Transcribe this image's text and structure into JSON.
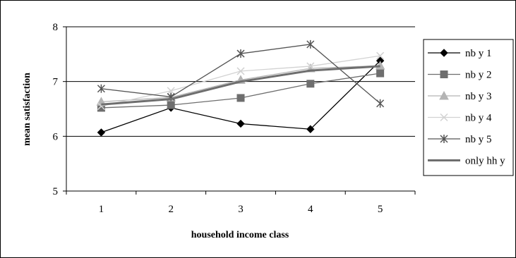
{
  "chart_data": {
    "type": "line",
    "x": [
      "1",
      "2",
      "3",
      "4",
      "5"
    ],
    "xlabel": "household income class",
    "ylabel": "mean satisfaction",
    "ylim": [
      5,
      8
    ],
    "yticks": [
      "5",
      "6",
      "7",
      "8"
    ],
    "grid": "horizontal major lines",
    "legend_position": "right",
    "series": [
      {
        "name": "nb y 1",
        "values": [
          6.07,
          6.52,
          6.23,
          6.13,
          7.38
        ],
        "color": "#000000",
        "marker": "diamond"
      },
      {
        "name": "nb y 2",
        "values": [
          6.52,
          6.57,
          6.7,
          6.96,
          7.15
        ],
        "color": "#6e6e6e",
        "marker": "square"
      },
      {
        "name": "nb y 3",
        "values": [
          6.63,
          6.71,
          7.03,
          7.24,
          7.29
        ],
        "color": "#b4b4b4",
        "marker": "triangle"
      },
      {
        "name": "nb y 4",
        "values": [
          6.55,
          6.83,
          7.19,
          7.28,
          7.47
        ],
        "color": "#d2d2d2",
        "marker": "x"
      },
      {
        "name": "nb y 5",
        "values": [
          6.87,
          6.72,
          7.51,
          7.68,
          6.6
        ],
        "color": "#555555",
        "marker": "star"
      },
      {
        "name": "only hh y",
        "values": [
          6.58,
          6.68,
          7.0,
          7.2,
          7.28
        ],
        "color": "#6e6e6e",
        "marker": "none",
        "thick": true
      }
    ]
  }
}
